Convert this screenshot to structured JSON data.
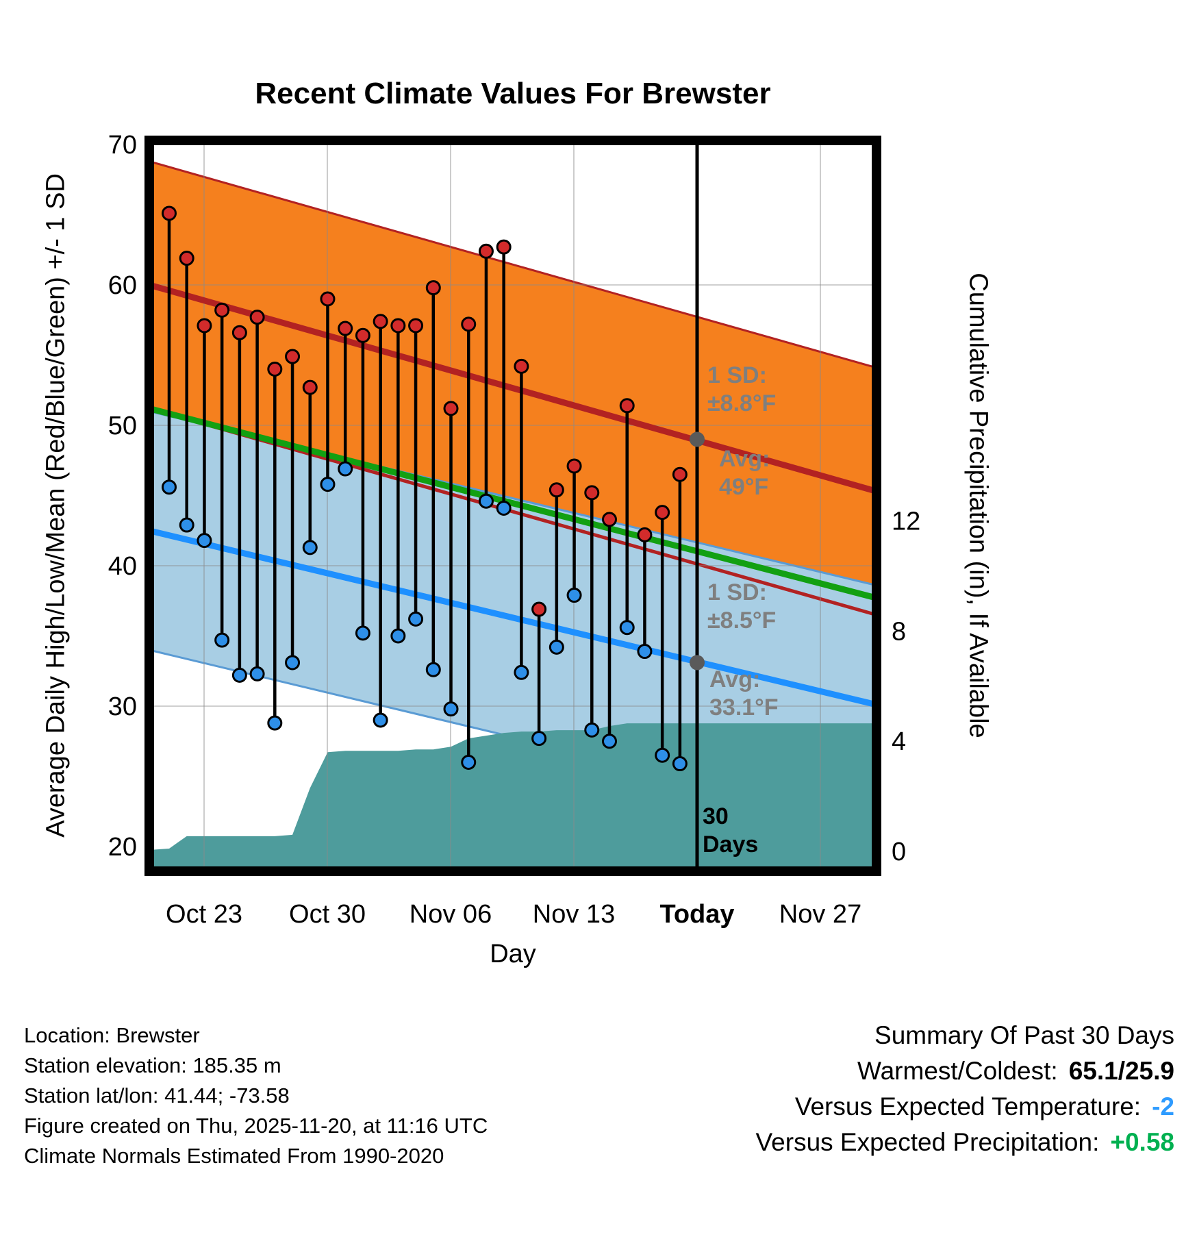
{
  "title": "Recent Climate Values For Brewster",
  "axes": {
    "left_label": "Average Daily High/Low/Mean (Red/Blue/Green) +/- 1 SD",
    "right_label": "Cumulative Precipitation (in), If Available",
    "x_label": "Day",
    "left_ticks": [
      70,
      60,
      50,
      40,
      30,
      20
    ],
    "right_ticks": [
      12,
      8,
      4,
      0
    ],
    "x_ticks": [
      "Oct 23",
      "Oct 30",
      "Nov 06",
      "Nov 13",
      "Today",
      "Nov 27"
    ],
    "emphasized_tick": "Today"
  },
  "annotations": {
    "high_sd_label": "1 SD:",
    "high_sd_value": "±8.8°F",
    "high_avg_label": "Avg:",
    "high_avg_value": "49°F",
    "low_sd_label": "1 SD:",
    "low_sd_value": "±8.5°F",
    "low_avg_label": "Avg:",
    "low_avg_value": "33.1°F",
    "window_line1": "30",
    "window_line2": "Days"
  },
  "colors": {
    "high_band": "#F5801E",
    "high_line": "#B22222",
    "mean_line": "#12A012",
    "low_band": "#A8CEE4",
    "low_band_edge": "#5A9BD4",
    "low_line": "#1E90FF",
    "precip_fill": "#4E9C9C",
    "high_dot": "#D22B2B",
    "low_dot": "#2E8FE8",
    "today_dot": "#5a5a5a",
    "grid": "#8a8a8a",
    "value_temp": "#2E9BFF",
    "value_precip": "#00B050"
  },
  "chart_data": [
    {
      "type": "scatter",
      "name": "daily-high-low-stems",
      "x": [
        "Oct 21",
        "Oct 22",
        "Oct 23",
        "Oct 24",
        "Oct 25",
        "Oct 26",
        "Oct 27",
        "Oct 28",
        "Oct 29",
        "Oct 30",
        "Oct 31",
        "Nov 01",
        "Nov 02",
        "Nov 03",
        "Nov 04",
        "Nov 05",
        "Nov 06",
        "Nov 07",
        "Nov 08",
        "Nov 09",
        "Nov 10",
        "Nov 11",
        "Nov 12",
        "Nov 13",
        "Nov 14",
        "Nov 15",
        "Nov 16",
        "Nov 17",
        "Nov 18",
        "Nov 19"
      ],
      "series": [
        {
          "name": "Daily High (°F)",
          "values": [
            65.1,
            61.9,
            57.1,
            58.2,
            56.6,
            57.7,
            54.0,
            54.9,
            52.7,
            59.0,
            56.9,
            56.4,
            57.4,
            57.1,
            57.1,
            59.8,
            51.2,
            57.2,
            62.4,
            62.7,
            54.2,
            36.9,
            45.4,
            47.1,
            45.2,
            43.3,
            51.4,
            42.2,
            43.8,
            46.5
          ]
        },
        {
          "name": "Daily Low (°F)",
          "values": [
            45.6,
            42.9,
            41.8,
            34.7,
            32.2,
            32.3,
            28.8,
            33.1,
            41.3,
            45.8,
            46.9,
            35.2,
            29.0,
            35.0,
            36.2,
            32.6,
            29.8,
            26.0,
            44.6,
            44.1,
            32.4,
            27.7,
            34.2,
            37.9,
            28.3,
            27.5,
            35.6,
            33.9,
            26.5,
            25.9
          ]
        }
      ],
      "ylim": [
        20,
        70
      ]
    },
    {
      "type": "line",
      "name": "climate-normals",
      "normals": {
        "x_span": [
          "Oct 20",
          "Nov 30"
        ],
        "high_avg": [
          60.0,
          45.3
        ],
        "high_sd": 8.8,
        "low_avg": [
          42.5,
          30.1
        ],
        "low_sd": 8.5,
        "mean": [
          51.2,
          37.7
        ],
        "today": {
          "high_avg": 49,
          "low_avg": 33.1
        }
      }
    },
    {
      "type": "area",
      "name": "cumulative-precipitation",
      "x": [
        "Oct 21",
        "Oct 22",
        "Oct 23",
        "Oct 24",
        "Oct 25",
        "Oct 26",
        "Oct 27",
        "Oct 28",
        "Oct 29",
        "Oct 30",
        "Oct 31",
        "Nov 01",
        "Nov 02",
        "Nov 03",
        "Nov 04",
        "Nov 05",
        "Nov 06",
        "Nov 07",
        "Nov 08",
        "Nov 09",
        "Nov 10",
        "Nov 11",
        "Nov 12",
        "Nov 13",
        "Nov 14",
        "Nov 15",
        "Nov 16",
        "Nov 17",
        "Nov 18",
        "Nov 19"
      ],
      "values": [
        0.1,
        0.55,
        0.55,
        0.55,
        0.55,
        0.55,
        0.55,
        0.6,
        2.3,
        3.6,
        3.65,
        3.65,
        3.65,
        3.65,
        3.7,
        3.7,
        3.8,
        4.1,
        4.2,
        4.3,
        4.35,
        4.35,
        4.4,
        4.4,
        4.4,
        4.55,
        4.65,
        4.65,
        4.65,
        4.65
      ],
      "yticks": [
        0,
        4,
        8,
        12
      ]
    }
  ],
  "footer": {
    "left_lines": [
      "Location: Brewster",
      "Station elevation: 185.35 m",
      "Station lat/lon: 41.44; -73.58",
      "Figure created on Thu, 2025-11-20, at 11:16 UTC",
      "Climate Normals Estimated From 1990-2020"
    ],
    "summary": {
      "title": "Summary Of Past 30 Days",
      "rows": [
        {
          "label": "Warmest/Coldest:",
          "value": "65.1/25.9",
          "color": "#000000"
        },
        {
          "label": "Versus Expected Temperature:",
          "value": "-2",
          "color": "#2E9BFF"
        },
        {
          "label": "Versus Expected Precipitation:",
          "value": "+0.58",
          "color": "#00B050"
        }
      ]
    }
  }
}
